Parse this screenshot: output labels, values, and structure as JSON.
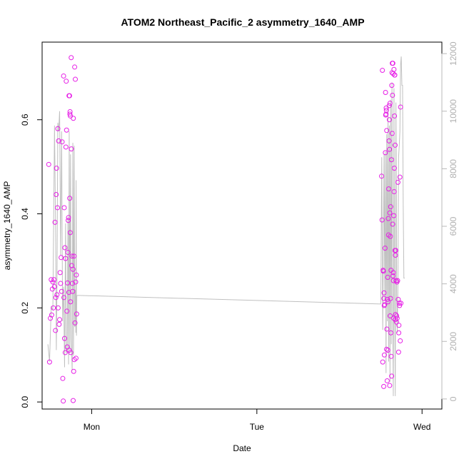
{
  "chart_data": {
    "type": "scatter",
    "title": "ATOM2 Northeast_Pacific_2 asymmetry_1640_AMP",
    "xlabel": "Date",
    "ylabel": "asymmetry_1640_AMP",
    "x_ticks": [
      {
        "label": "Mon",
        "value": 1.0
      },
      {
        "label": "Tue",
        "value": 2.0
      },
      {
        "label": "Wed",
        "value": 3.0
      }
    ],
    "xlim": [
      0.7,
      3.12
    ],
    "ylim": [
      -0.015,
      0.765
    ],
    "y_ticks": [
      0.0,
      0.2,
      0.4,
      0.6
    ],
    "y2lim": [
      -350,
      12400
    ],
    "y2_ticks": [
      0,
      2000,
      4000,
      6000,
      8000,
      10000,
      12000
    ],
    "legend": "none",
    "grid": false,
    "colors": {
      "points": "#e61ee6",
      "line": "#c0c0c0",
      "right_axis": "#b8b8b8"
    },
    "series": [
      {
        "role": "points",
        "points": [
          [
            0.74,
            0.505
          ],
          [
            0.745,
            0.085
          ],
          [
            0.75,
            0.178
          ],
          [
            0.755,
            0.26
          ],
          [
            0.758,
            0.185
          ],
          [
            0.762,
            0.24
          ],
          [
            0.765,
            0.255
          ],
          [
            0.768,
            0.2
          ],
          [
            0.772,
            0.26
          ],
          [
            0.775,
            0.245
          ],
          [
            0.778,
            0.382
          ],
          [
            0.781,
            0.152
          ],
          [
            0.783,
            0.222
          ],
          [
            0.785,
            0.441
          ],
          [
            0.787,
            0.497
          ],
          [
            0.79,
            0.228
          ],
          [
            0.793,
            0.413
          ],
          [
            0.795,
            0.581
          ],
          [
            0.797,
            0.2
          ],
          [
            0.8,
            0.555
          ],
          [
            0.803,
            0.165
          ],
          [
            0.806,
            0.175
          ],
          [
            0.809,
            0.275
          ],
          [
            0.812,
            0.252
          ],
          [
            0.815,
            0.307
          ],
          [
            0.818,
            0.235
          ],
          [
            0.821,
            0.553
          ],
          [
            0.825,
            0.05
          ],
          [
            0.828,
            0.002
          ],
          [
            0.83,
            0.693
          ],
          [
            0.832,
            0.222
          ],
          [
            0.834,
            0.413
          ],
          [
            0.836,
            0.135
          ],
          [
            0.838,
            0.328
          ],
          [
            0.84,
            0.105
          ],
          [
            0.842,
            0.305
          ],
          [
            0.844,
            0.542
          ],
          [
            0.846,
            0.682
          ],
          [
            0.848,
            0.578
          ],
          [
            0.85,
            0.193
          ],
          [
            0.852,
            0.117
          ],
          [
            0.854,
            0.253
          ],
          [
            0.856,
            0.318
          ],
          [
            0.858,
            0.386
          ],
          [
            0.86,
            0.392
          ],
          [
            0.862,
            0.233
          ],
          [
            0.863,
            0.651
          ],
          [
            0.864,
            0.11
          ],
          [
            0.866,
            0.651
          ],
          [
            0.867,
            0.433
          ],
          [
            0.868,
            0.612
          ],
          [
            0.869,
            0.617
          ],
          [
            0.87,
            0.36
          ],
          [
            0.871,
            0.608
          ],
          [
            0.872,
            0.213
          ],
          [
            0.874,
            0.105
          ],
          [
            0.876,
            0.732
          ],
          [
            0.877,
            0.538
          ],
          [
            0.879,
            0.29
          ],
          [
            0.881,
            0.31
          ],
          [
            0.883,
            0.252
          ],
          [
            0.885,
            0.235
          ],
          [
            0.887,
            0.282
          ],
          [
            0.888,
            0.003
          ],
          [
            0.889,
            0.603
          ],
          [
            0.891,
            0.065
          ],
          [
            0.893,
            0.31
          ],
          [
            0.895,
            0.09
          ],
          [
            0.897,
            0.712
          ],
          [
            0.899,
            0.168
          ],
          [
            0.901,
            0.686
          ],
          [
            0.903,
            0.255
          ],
          [
            0.905,
            0.093
          ],
          [
            0.907,
            0.27
          ],
          [
            0.909,
            0.187
          ],
          [
            2.755,
            0.48
          ],
          [
            2.758,
            0.387
          ],
          [
            2.76,
            0.705
          ],
          [
            2.762,
            0.085
          ],
          [
            2.764,
            0.28
          ],
          [
            2.766,
            0.278
          ],
          [
            2.768,
            0.033
          ],
          [
            2.769,
            0.22
          ],
          [
            2.77,
            0.232
          ],
          [
            2.771,
            0.205
          ],
          [
            2.772,
            0.1
          ],
          [
            2.774,
            0.207
          ],
          [
            2.776,
            0.327
          ],
          [
            2.778,
            0.53
          ],
          [
            2.779,
            0.658
          ],
          [
            2.78,
            0.61
          ],
          [
            2.782,
            0.612
          ],
          [
            2.783,
            0.625
          ],
          [
            2.784,
            0.62
          ],
          [
            2.785,
            0.112
          ],
          [
            2.786,
            0.577
          ],
          [
            2.787,
            0.155
          ],
          [
            2.789,
            0.045
          ],
          [
            2.79,
            0.218
          ],
          [
            2.792,
            0.265
          ],
          [
            2.793,
            0.11
          ],
          [
            2.794,
            0.213
          ],
          [
            2.796,
            0.39
          ],
          [
            2.797,
            0.355
          ],
          [
            2.798,
            0.453
          ],
          [
            2.8,
            0.555
          ],
          [
            2.801,
            0.63
          ],
          [
            2.802,
            0.6
          ],
          [
            2.803,
            0.537
          ],
          [
            2.804,
            0.035
          ],
          [
            2.805,
            0.402
          ],
          [
            2.806,
            0.635
          ],
          [
            2.807,
            0.183
          ],
          [
            2.808,
            0.352
          ],
          [
            2.809,
            0.22
          ],
          [
            2.81,
            0.415
          ],
          [
            2.811,
            0.147
          ],
          [
            2.812,
            0.28
          ],
          [
            2.813,
            0.097
          ],
          [
            2.815,
            0.515
          ],
          [
            2.816,
            0.055
          ],
          [
            2.817,
            0.673
          ],
          [
            2.818,
            0.7
          ],
          [
            2.819,
            0.571
          ],
          [
            2.82,
            0.72
          ],
          [
            2.821,
            0.652
          ],
          [
            2.822,
            0.378
          ],
          [
            2.823,
            0.72
          ],
          [
            2.824,
            0.268
          ],
          [
            2.825,
            0.698
          ],
          [
            2.826,
            0.275
          ],
          [
            2.827,
            0.258
          ],
          [
            2.828,
            0.178
          ],
          [
            2.829,
            0.396
          ],
          [
            2.83,
            0.707
          ],
          [
            2.831,
            0.447
          ],
          [
            2.832,
            0.497
          ],
          [
            2.833,
            0.608
          ],
          [
            2.834,
            0.695
          ],
          [
            2.835,
            0.695
          ],
          [
            2.836,
            0.322
          ],
          [
            2.837,
            0.546
          ],
          [
            2.838,
            0.175
          ],
          [
            2.839,
            0.312
          ],
          [
            2.84,
            0.186
          ],
          [
            2.841,
            0.322
          ],
          [
            2.843,
            0.258
          ],
          [
            2.845,
            0.17
          ],
          [
            2.846,
            0.183
          ],
          [
            2.848,
            0.255
          ],
          [
            2.849,
            0.178
          ],
          [
            2.852,
            0.258
          ],
          [
            2.854,
            0.467
          ],
          [
            2.856,
            0.218
          ],
          [
            2.858,
            0.106
          ],
          [
            2.859,
            0.147
          ],
          [
            2.86,
            0.163
          ],
          [
            2.862,
            0.21
          ],
          [
            2.864,
            0.205
          ],
          [
            2.866,
            0.478
          ],
          [
            2.868,
            0.13
          ],
          [
            2.87,
            0.627
          ],
          [
            2.872,
            0.21
          ]
        ]
      },
      {
        "role": "line",
        "axis": "right",
        "points": [
          [
            0.735,
            1900
          ],
          [
            0.745,
            1300
          ],
          [
            0.755,
            3200
          ],
          [
            0.765,
            3100
          ],
          [
            0.775,
            9500
          ],
          [
            0.782,
            5700
          ],
          [
            0.786,
            1700
          ],
          [
            0.79,
            4000
          ],
          [
            0.795,
            9600
          ],
          [
            0.8,
            9300
          ],
          [
            0.806,
            10000
          ],
          [
            0.812,
            5000
          ],
          [
            0.818,
            9300
          ],
          [
            0.824,
            2700
          ],
          [
            0.83,
            3900
          ],
          [
            0.836,
            1100
          ],
          [
            0.842,
            6100
          ],
          [
            0.846,
            1600
          ],
          [
            0.852,
            1800
          ],
          [
            0.856,
            6300
          ],
          [
            0.86,
            1200
          ],
          [
            0.864,
            9300
          ],
          [
            0.868,
            1700
          ],
          [
            0.872,
            8500
          ],
          [
            0.876,
            2100
          ],
          [
            0.882,
            1000
          ],
          [
            0.886,
            8900
          ],
          [
            0.89,
            1500
          ],
          [
            0.894,
            8800
          ],
          [
            0.898,
            2500
          ],
          [
            0.902,
            3800
          ],
          [
            0.904,
            2300
          ],
          [
            0.906,
            7600
          ],
          [
            0.908,
            2200
          ],
          [
            0.91,
            3600
          ],
          [
            2.75,
            3300
          ],
          [
            2.756,
            8400
          ],
          [
            2.762,
            2400
          ],
          [
            2.766,
            5400
          ],
          [
            2.77,
            8500
          ],
          [
            2.774,
            3400
          ],
          [
            2.778,
            8600
          ],
          [
            2.782,
            900
          ],
          [
            2.786,
            9200
          ],
          [
            2.79,
            2700
          ],
          [
            2.794,
            10200
          ],
          [
            2.798,
            1300
          ],
          [
            2.802,
            9500
          ],
          [
            2.806,
            600
          ],
          [
            2.81,
            10400
          ],
          [
            2.814,
            1900
          ],
          [
            2.818,
            11000
          ],
          [
            2.822,
            3300
          ],
          [
            2.826,
            100
          ],
          [
            2.83,
            10800
          ],
          [
            2.834,
            3500
          ],
          [
            2.838,
            100
          ],
          [
            2.842,
            10300
          ],
          [
            2.846,
            3700
          ],
          [
            2.85,
            2300
          ],
          [
            2.854,
            4000
          ],
          [
            2.858,
            8400
          ],
          [
            2.862,
            8800
          ],
          [
            2.866,
            9300
          ],
          [
            2.87,
            11600
          ],
          [
            2.874,
            11900
          ],
          [
            2.878,
            10900
          ],
          [
            2.882,
            10900
          ],
          [
            2.886,
            6700
          ],
          [
            2.89,
            4200
          ],
          [
            2.895,
            4200
          ]
        ]
      }
    ]
  }
}
